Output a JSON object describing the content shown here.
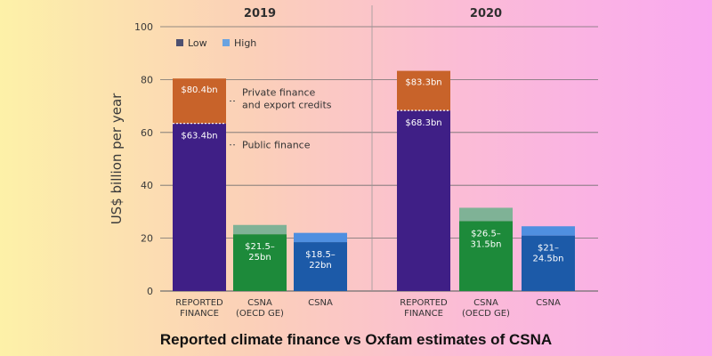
{
  "caption": "Reported climate finance vs Oxfam estimates of CSNA",
  "colors": {
    "low": "#5a5a7a",
    "high": "#6aa3e0",
    "reported_low": "#3f1f86",
    "reported_high": "#c8632a",
    "csna_oecd": "#1d8a3a",
    "csna_oecd_high": "#7fb296",
    "csna": "#1c5aa8",
    "csna_high": "#4f8fe0",
    "grid": "#6f6f6f"
  },
  "chart_data": {
    "type": "bar",
    "ylabel": "US$ billion per year",
    "ylim": [
      0,
      100
    ],
    "yticks": [
      0,
      20,
      40,
      60,
      80,
      100
    ],
    "legend": [
      {
        "name": "Low",
        "color": "#4d5070"
      },
      {
        "name": "High",
        "color": "#6aa3e0"
      }
    ],
    "annotations": [
      "Private finance\nand export credits",
      "Public finance"
    ],
    "groups": [
      {
        "year": "2019",
        "bars": [
          {
            "category": "REPORTED\nFINANCE",
            "segments": [
              {
                "value": 63.4,
                "color": "#3f1f86",
                "label": "$63.4bn"
              },
              {
                "value": 17.0,
                "color": "#c8632a",
                "label": "$80.4bn"
              }
            ]
          },
          {
            "category": "CSNA\n(OECD GE)",
            "segments": [
              {
                "value": 21.5,
                "color": "#1d8a3a",
                "label": "$21.5–\n25bn"
              },
              {
                "value": 3.5,
                "color": "#7fb296",
                "label": ""
              }
            ]
          },
          {
            "category": "CSNA",
            "segments": [
              {
                "value": 18.5,
                "color": "#1c5aa8",
                "label": "$18.5–\n22bn"
              },
              {
                "value": 3.5,
                "color": "#4f8fe0",
                "label": ""
              }
            ]
          }
        ]
      },
      {
        "year": "2020",
        "bars": [
          {
            "category": "REPORTED\nFINANCE",
            "segments": [
              {
                "value": 68.3,
                "color": "#3f1f86",
                "label": "$68.3bn"
              },
              {
                "value": 15.0,
                "color": "#c8632a",
                "label": "$83.3bn"
              }
            ]
          },
          {
            "category": "CSNA\n(OECD GE)",
            "segments": [
              {
                "value": 26.5,
                "color": "#1d8a3a",
                "label": "$26.5–\n31.5bn"
              },
              {
                "value": 5.0,
                "color": "#7fb296",
                "label": ""
              }
            ]
          },
          {
            "category": "CSNA",
            "segments": [
              {
                "value": 21.0,
                "color": "#1c5aa8",
                "label": "$21–\n24.5bn"
              },
              {
                "value": 3.5,
                "color": "#4f8fe0",
                "label": ""
              }
            ]
          }
        ]
      }
    ]
  }
}
